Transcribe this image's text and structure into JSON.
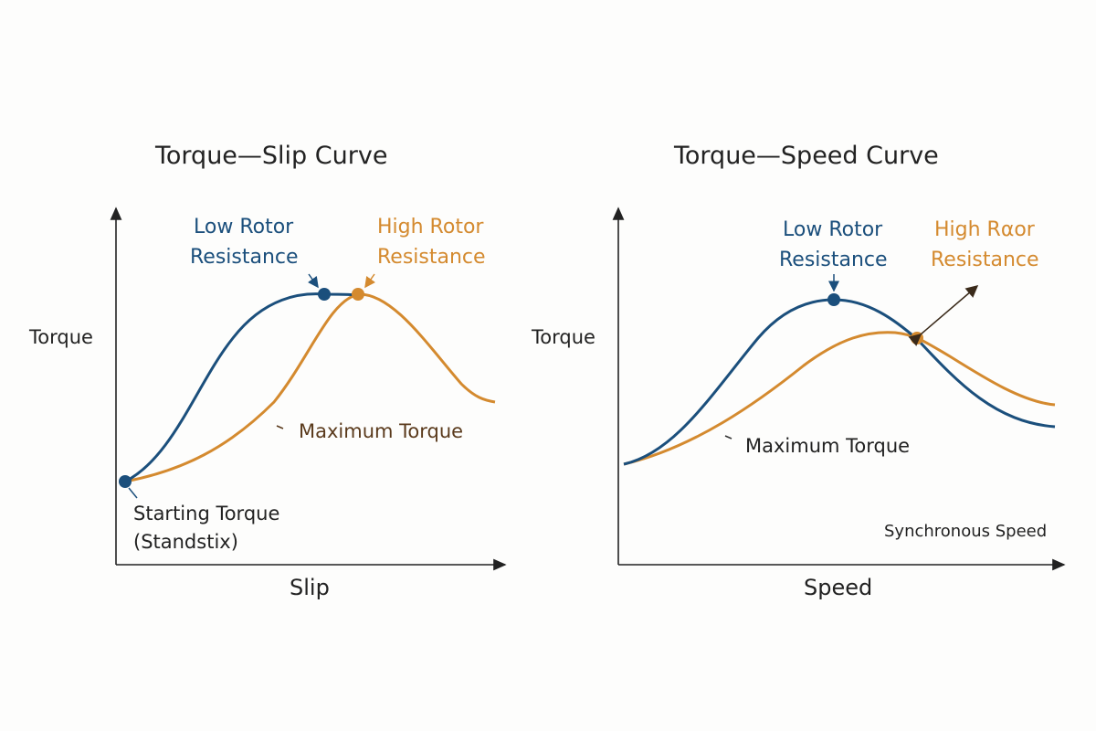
{
  "left": {
    "title": "Torque—Slip Curve",
    "y_label": "Torque",
    "x_label": "Slip",
    "low_label": [
      "Low Rotor",
      "Resistance"
    ],
    "high_label": [
      "High Rotor",
      "Resistance"
    ],
    "max_label": "Maximum Torque",
    "start_label": [
      "Starting Torque",
      "(Standstix)"
    ]
  },
  "right": {
    "title": "Torque—Speed Curve",
    "y_label": "Torque",
    "x_label": "Speed",
    "low_label": [
      "Low Rotor",
      "Resistance"
    ],
    "high_label": [
      "High Rαor",
      "Resistance"
    ],
    "max_label": "Maximum Torque",
    "sync_label": "Synchronous Speed"
  },
  "colors": {
    "low": "#1b4f7c",
    "high": "#d48a2f",
    "text": "#222222",
    "max_left": "#5a3a1c"
  }
}
